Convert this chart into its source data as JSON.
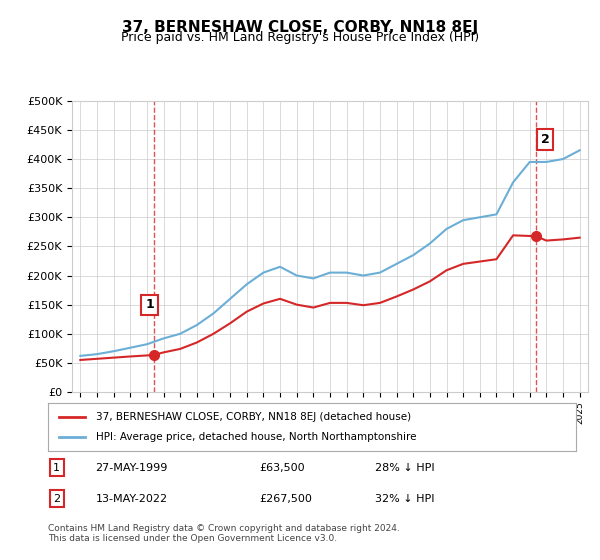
{
  "title": "37, BERNESHAW CLOSE, CORBY, NN18 8EJ",
  "subtitle": "Price paid vs. HM Land Registry's House Price Index (HPI)",
  "ylabel": "",
  "ylim": [
    0,
    500000
  ],
  "yticks": [
    0,
    50000,
    100000,
    150000,
    200000,
    250000,
    300000,
    350000,
    400000,
    450000,
    500000
  ],
  "ytick_labels": [
    "£0",
    "£50K",
    "£100K",
    "£150K",
    "£200K",
    "£250K",
    "£300K",
    "£350K",
    "£400K",
    "£450K",
    "£500K"
  ],
  "hpi_color": "#6baed6",
  "sale_color": "#d62728",
  "dashed_color": "#d62728",
  "annotation_box_color": "#d62728",
  "bg_color": "#ffffff",
  "grid_color": "#cccccc",
  "legend_label_sale": "37, BERNESHAW CLOSE, CORBY, NN18 8EJ (detached house)",
  "legend_label_hpi": "HPI: Average price, detached house, North Northamptonshire",
  "sale1_date": "27-MAY-1999",
  "sale1_price": 63500,
  "sale1_label": "1",
  "sale1_x": 1999.4,
  "sale2_date": "13-MAY-2022",
  "sale2_price": 267500,
  "sale2_label": "2",
  "sale2_x": 2022.37,
  "annotation1": "1    27-MAY-1999         £63,500        28% ↓ HPI",
  "annotation2": "2    13-MAY-2022         £267,500      32% ↓ HPI",
  "footer": "Contains HM Land Registry data © Crown copyright and database right 2024.\nThis data is licensed under the Open Government Licence v3.0.",
  "title_fontsize": 11,
  "subtitle_fontsize": 9,
  "tick_fontsize": 8,
  "hpi_years": [
    1995,
    1996,
    1997,
    1998,
    1999,
    2000,
    2001,
    2002,
    2003,
    2004,
    2005,
    2006,
    2007,
    2008,
    2009,
    2010,
    2011,
    2012,
    2013,
    2014,
    2015,
    2016,
    2017,
    2018,
    2019,
    2020,
    2021,
    2022,
    2023,
    2024,
    2025
  ],
  "hpi_values": [
    62000,
    65000,
    70000,
    76000,
    82000,
    92000,
    100000,
    115000,
    135000,
    160000,
    185000,
    205000,
    215000,
    200000,
    195000,
    205000,
    205000,
    200000,
    205000,
    220000,
    235000,
    255000,
    280000,
    295000,
    300000,
    305000,
    360000,
    395000,
    395000,
    400000,
    415000
  ],
  "sale_years": [
    1999.4,
    2022.37
  ],
  "sale_prices": [
    63500,
    267500
  ],
  "xlim_left": 1994.5,
  "xlim_right": 2025.5
}
